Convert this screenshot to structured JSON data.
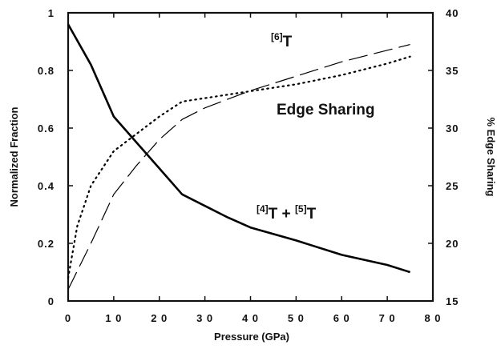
{
  "chart_data": {
    "type": "line",
    "xlabel": "Pressure (GPa)",
    "ylabel_left": "Normalized Fraction",
    "ylabel_right": "% Edge Sharing",
    "xlim": [
      0,
      80
    ],
    "ylim_left": [
      0,
      1
    ],
    "ylim_right": [
      15,
      40
    ],
    "x_ticks": [
      0,
      10,
      20,
      30,
      40,
      50,
      60,
      70,
      80
    ],
    "x_tick_labels": [
      "0",
      "1 0",
      "2 0",
      "3 0",
      "4 0",
      "5 0",
      "6 0",
      "7 0",
      "8 0"
    ],
    "y_left_ticks": [
      0,
      0.2,
      0.4,
      0.6,
      0.8,
      1
    ],
    "y_left_tick_labels": [
      "0",
      "0.2",
      "0.4",
      "0.6",
      "0.8",
      "1"
    ],
    "y_right_ticks": [
      15,
      20,
      25,
      30,
      35,
      40
    ],
    "y_right_tick_labels": [
      "15",
      "20",
      "25",
      "30",
      "35",
      "40"
    ],
    "grid": false,
    "series": [
      {
        "name": "[4]T + [5]T",
        "axis": "left",
        "style": "solid",
        "color": "#000000",
        "points": [
          [
            0,
            0.96
          ],
          [
            5,
            0.82
          ],
          [
            10,
            0.64
          ],
          [
            15,
            0.55
          ],
          [
            20,
            0.46
          ],
          [
            25,
            0.37
          ],
          [
            30,
            0.33
          ],
          [
            35,
            0.29
          ],
          [
            40,
            0.255
          ],
          [
            50,
            0.21
          ],
          [
            60,
            0.16
          ],
          [
            70,
            0.125
          ],
          [
            75,
            0.1
          ]
        ]
      },
      {
        "name": "[6]T",
        "axis": "left",
        "style": "dashed",
        "color": "#000000",
        "points": [
          [
            0,
            0.04
          ],
          [
            5,
            0.2
          ],
          [
            10,
            0.37
          ],
          [
            15,
            0.47
          ],
          [
            20,
            0.56
          ],
          [
            25,
            0.63
          ],
          [
            30,
            0.67
          ],
          [
            40,
            0.73
          ],
          [
            50,
            0.78
          ],
          [
            60,
            0.83
          ],
          [
            70,
            0.87
          ],
          [
            75,
            0.89
          ]
        ]
      },
      {
        "name": "Edge Sharing",
        "axis": "right",
        "style": "dotted",
        "color": "#000000",
        "points": [
          [
            0,
            17.0
          ],
          [
            2,
            21.5
          ],
          [
            5,
            25.0
          ],
          [
            10,
            28.0
          ],
          [
            15,
            29.5
          ],
          [
            20,
            31.0
          ],
          [
            25,
            32.3
          ],
          [
            30,
            32.6
          ],
          [
            40,
            33.2
          ],
          [
            50,
            33.8
          ],
          [
            60,
            34.6
          ],
          [
            70,
            35.6
          ],
          [
            75,
            36.2
          ]
        ]
      }
    ],
    "annotations": [
      {
        "sup": "[6]",
        "text": "T",
        "series": "[6]T"
      },
      {
        "text": "Edge Sharing",
        "series": "Edge Sharing"
      },
      {
        "sup1": "[4]",
        "text1": "T + ",
        "sup2": "[5]",
        "text2": "T",
        "series": "[4]T + [5]T"
      }
    ]
  }
}
